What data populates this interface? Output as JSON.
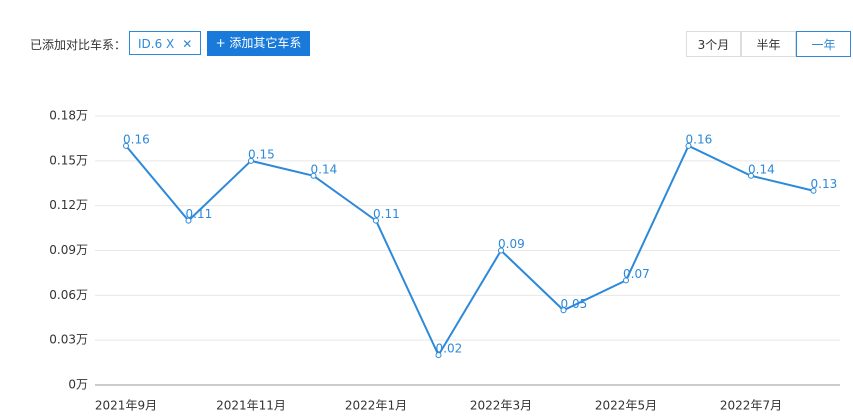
{
  "controls": {
    "compare_label": "已添加对比车系：",
    "chip": "ID.6 X",
    "add_button": "+ 添加其它车系",
    "tabs": [
      "3个月",
      "半年",
      "一年"
    ],
    "selected_tab": 2
  },
  "chart_data": {
    "type": "line",
    "categories": [
      "2021年9月",
      null,
      "2021年11月",
      null,
      "2022年1月",
      null,
      "2022年3月",
      null,
      "2022年5月",
      null,
      "2022年7月",
      null
    ],
    "values": [
      0.16,
      0.11,
      0.15,
      0.14,
      0.11,
      0.02,
      0.09,
      0.05,
      0.07,
      0.16,
      0.14,
      0.13
    ],
    "color": "#2d89d9",
    "ylim": [
      0,
      0.18
    ],
    "yticks": [
      {
        "value": 0,
        "label": "0万"
      },
      {
        "value": 0.03,
        "label": "0.03万"
      },
      {
        "value": 0.06,
        "label": "0.06万"
      },
      {
        "value": 0.09,
        "label": "0.09万"
      },
      {
        "value": 0.12,
        "label": "0.12万"
      },
      {
        "value": 0.15,
        "label": "0.15万"
      },
      {
        "value": 0.18,
        "label": "0.18万"
      }
    ],
    "grid": true
  }
}
